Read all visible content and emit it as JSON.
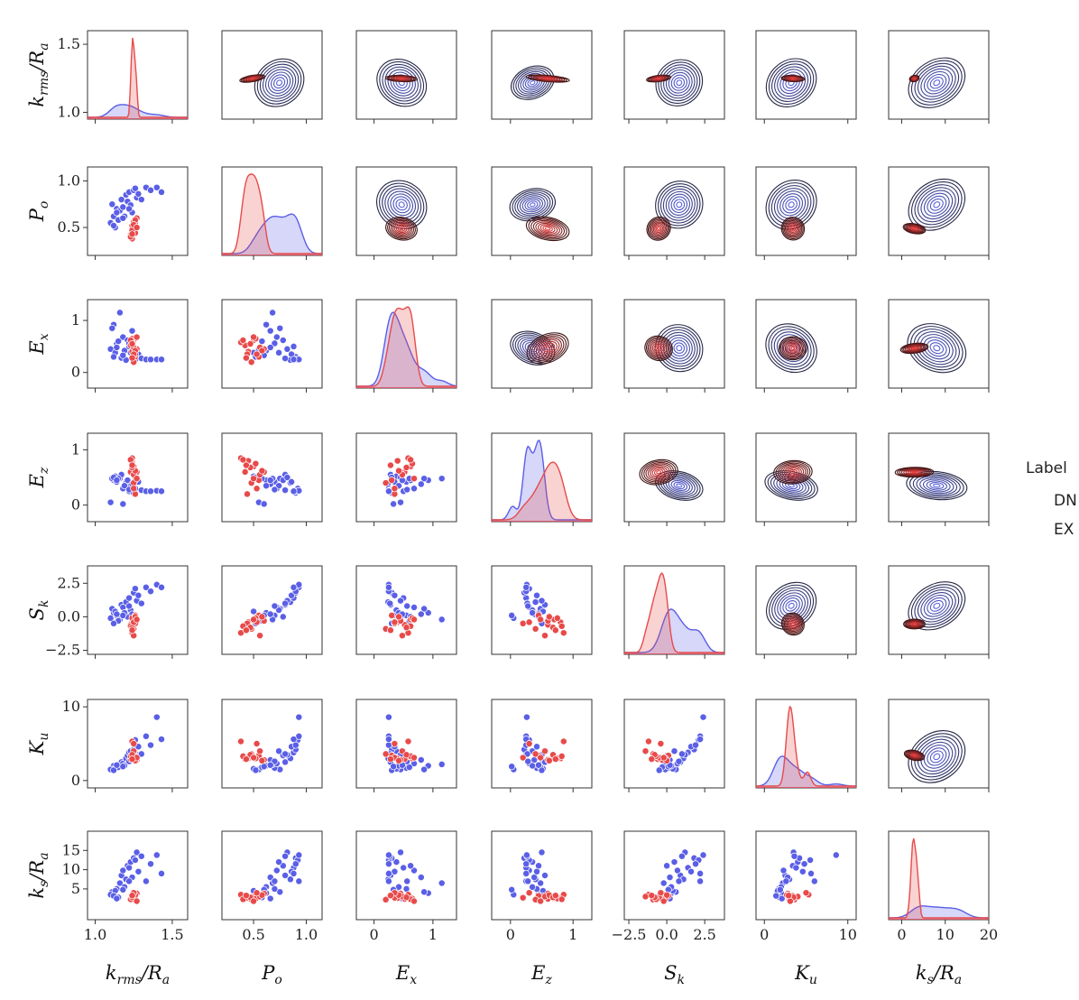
{
  "chart_data": {
    "type": "scatter",
    "layout": "pairplot",
    "variables": [
      {
        "key": "krms",
        "tex": "k_rms/R_a",
        "base": "k",
        "sub": "rms",
        "suffix": "/R",
        "suffix_sub": "a",
        "lim": [
          0.95,
          1.6
        ],
        "ticks": [
          1.0,
          1.5
        ],
        "tick_labels": [
          "1.0",
          "1.5"
        ]
      },
      {
        "key": "Po",
        "tex": "P_o",
        "base": "P",
        "sub": "o",
        "suffix": "",
        "suffix_sub": "",
        "lim": [
          0.2,
          1.15
        ],
        "ticks": [
          0.5,
          1.0
        ],
        "tick_labels": [
          "0.5",
          "1.0"
        ]
      },
      {
        "key": "Ex",
        "tex": "E_x",
        "base": "E",
        "sub": "x",
        "suffix": "",
        "suffix_sub": "",
        "lim": [
          -0.3,
          1.4
        ],
        "ticks": [
          0,
          1
        ],
        "tick_labels": [
          "0",
          "1"
        ]
      },
      {
        "key": "Ez",
        "tex": "E_z",
        "base": "E",
        "sub": "z",
        "suffix": "",
        "suffix_sub": "",
        "lim": [
          -0.3,
          1.3
        ],
        "ticks": [
          0,
          1
        ],
        "tick_labels": [
          "0",
          "1"
        ]
      },
      {
        "key": "Sk",
        "tex": "S_k",
        "base": "S",
        "sub": "k",
        "suffix": "",
        "suffix_sub": "",
        "lim": [
          -2.8,
          3.8
        ],
        "ticks": [
          -2.5,
          0.0,
          2.5
        ],
        "tick_labels": [
          "−2.5",
          "0.0",
          "2.5"
        ]
      },
      {
        "key": "Ku",
        "tex": "K_u",
        "base": "K",
        "sub": "u",
        "suffix": "",
        "suffix_sub": "",
        "lim": [
          -1,
          11
        ],
        "ticks": [
          0,
          10
        ],
        "tick_labels": [
          "0",
          "10"
        ]
      },
      {
        "key": "ks",
        "tex": "k_s/R_a",
        "base": "k",
        "sub": "s",
        "suffix": "/R",
        "suffix_sub": "a",
        "lim": [
          -3,
          20
        ],
        "ticks": [
          5,
          10,
          15
        ],
        "x_ticks": [
          0,
          10,
          20
        ],
        "tick_labels": [
          "5",
          "10",
          "15"
        ],
        "x_tick_labels": [
          "0",
          "10",
          "20"
        ]
      }
    ],
    "legend": {
      "title": "Label",
      "position": "right",
      "entries_visible": [
        "DN",
        "EX"
      ]
    },
    "series": [
      {
        "name": "DN",
        "color": "#5a5fe6",
        "kde_color": "#3f3fbf",
        "points": [
          [
            1.12,
            0.62,
            0.92,
            0.45,
            0.3,
            2.0,
            3.9
          ],
          [
            1.11,
            0.75,
            0.85,
            0.48,
            0.6,
            1.5,
            4.2
          ],
          [
            1.14,
            0.7,
            0.55,
            0.42,
            0.1,
            1.7,
            5.0
          ],
          [
            1.1,
            0.55,
            0.45,
            0.05,
            -0.1,
            1.5,
            3.5
          ],
          [
            1.13,
            0.5,
            0.38,
            0.52,
            0.4,
            1.6,
            4.5
          ],
          [
            1.16,
            0.68,
            1.15,
            0.48,
            -0.2,
            2.2,
            6.5
          ],
          [
            1.17,
            0.8,
            0.28,
            0.55,
            0.9,
            2.5,
            8.5
          ],
          [
            1.18,
            0.72,
            0.68,
            0.3,
            0.7,
            2.3,
            9.8
          ],
          [
            1.2,
            0.85,
            0.24,
            0.4,
            1.1,
            3.0,
            7.5
          ],
          [
            1.21,
            0.78,
            0.62,
            0.45,
            0.0,
            3.4,
            11.0
          ],
          [
            1.22,
            0.88,
            0.5,
            0.25,
            1.4,
            3.8,
            10.5
          ],
          [
            1.23,
            0.74,
            0.38,
            0.35,
            0.5,
            4.0,
            12.0
          ],
          [
            1.25,
            0.9,
            0.3,
            0.22,
            1.8,
            4.2,
            13.0
          ],
          [
            1.27,
            0.82,
            0.45,
            0.5,
            1.2,
            3.5,
            14.5
          ],
          [
            1.24,
            0.66,
            0.8,
            0.38,
            0.2,
            2.8,
            8.0
          ],
          [
            1.26,
            0.92,
            0.25,
            0.3,
            2.1,
            5.5,
            12.5
          ],
          [
            1.28,
            0.86,
            0.35,
            0.42,
            1.6,
            4.6,
            9.5
          ],
          [
            1.3,
            0.8,
            0.27,
            0.27,
            1.0,
            3.6,
            13.5
          ],
          [
            1.33,
            0.93,
            0.25,
            0.25,
            2.2,
            6.0,
            7.0
          ],
          [
            1.36,
            0.9,
            0.25,
            0.25,
            1.9,
            4.8,
            11.5
          ],
          [
            1.4,
            0.93,
            0.25,
            0.26,
            2.4,
            8.6,
            13.8
          ],
          [
            1.43,
            0.88,
            0.25,
            0.25,
            2.2,
            5.6,
            9.0
          ],
          [
            1.15,
            0.58,
            0.6,
            0.48,
            -0.3,
            1.8,
            2.8
          ],
          [
            1.19,
            0.62,
            0.42,
            0.35,
            0.3,
            2.0,
            5.5
          ],
          [
            1.22,
            0.7,
            0.56,
            0.28,
            0.8,
            2.6,
            7.0
          ],
          [
            1.12,
            0.52,
            0.3,
            0.5,
            -0.5,
            1.4,
            3.2
          ],
          [
            1.18,
            0.6,
            0.33,
            0.02,
            0.1,
            1.9,
            4.8
          ],
          [
            1.14,
            0.66,
            0.48,
            0.45,
            0.2,
            2.1,
            2.5
          ]
        ]
      },
      {
        "name": "EX",
        "color": "#e84a4a",
        "kde_color": "#7a1e1e",
        "points": [
          [
            1.24,
            0.45,
            0.4,
            0.8,
            -0.4,
            3.0,
            2.6
          ],
          [
            1.25,
            0.5,
            0.62,
            0.7,
            -0.2,
            3.2,
            2.9
          ],
          [
            1.23,
            0.42,
            0.52,
            0.6,
            -0.6,
            2.9,
            2.4
          ],
          [
            1.26,
            0.55,
            0.3,
            0.45,
            0.1,
            3.4,
            3.2
          ],
          [
            1.24,
            0.38,
            0.58,
            0.85,
            -1.2,
            5.3,
            3.5
          ],
          [
            1.25,
            0.48,
            0.2,
            0.4,
            -0.9,
            3.6,
            2.2
          ],
          [
            1.27,
            0.6,
            0.45,
            0.6,
            -0.3,
            2.8,
            3.8
          ],
          [
            1.24,
            0.52,
            0.65,
            0.75,
            -0.1,
            3.0,
            2.5
          ],
          [
            1.26,
            0.44,
            0.35,
            0.2,
            -0.5,
            3.1,
            2.7
          ],
          [
            1.25,
            0.56,
            0.48,
            0.55,
            -1.4,
            4.0,
            3.0
          ],
          [
            1.23,
            0.4,
            0.62,
            0.82,
            -0.7,
            3.3,
            2.3
          ],
          [
            1.26,
            0.58,
            0.42,
            0.62,
            0.0,
            2.7,
            3.4
          ],
          [
            1.24,
            0.47,
            0.55,
            0.68,
            -0.8,
            3.5,
            2.8
          ],
          [
            1.25,
            0.53,
            0.35,
            0.3,
            -0.4,
            5.0,
            4.0
          ],
          [
            1.27,
            0.5,
            0.68,
            0.48,
            -0.2,
            3.1,
            1.8
          ],
          [
            1.24,
            0.43,
            0.28,
            0.72,
            -1.0,
            2.9,
            3.3
          ]
        ]
      }
    ]
  }
}
